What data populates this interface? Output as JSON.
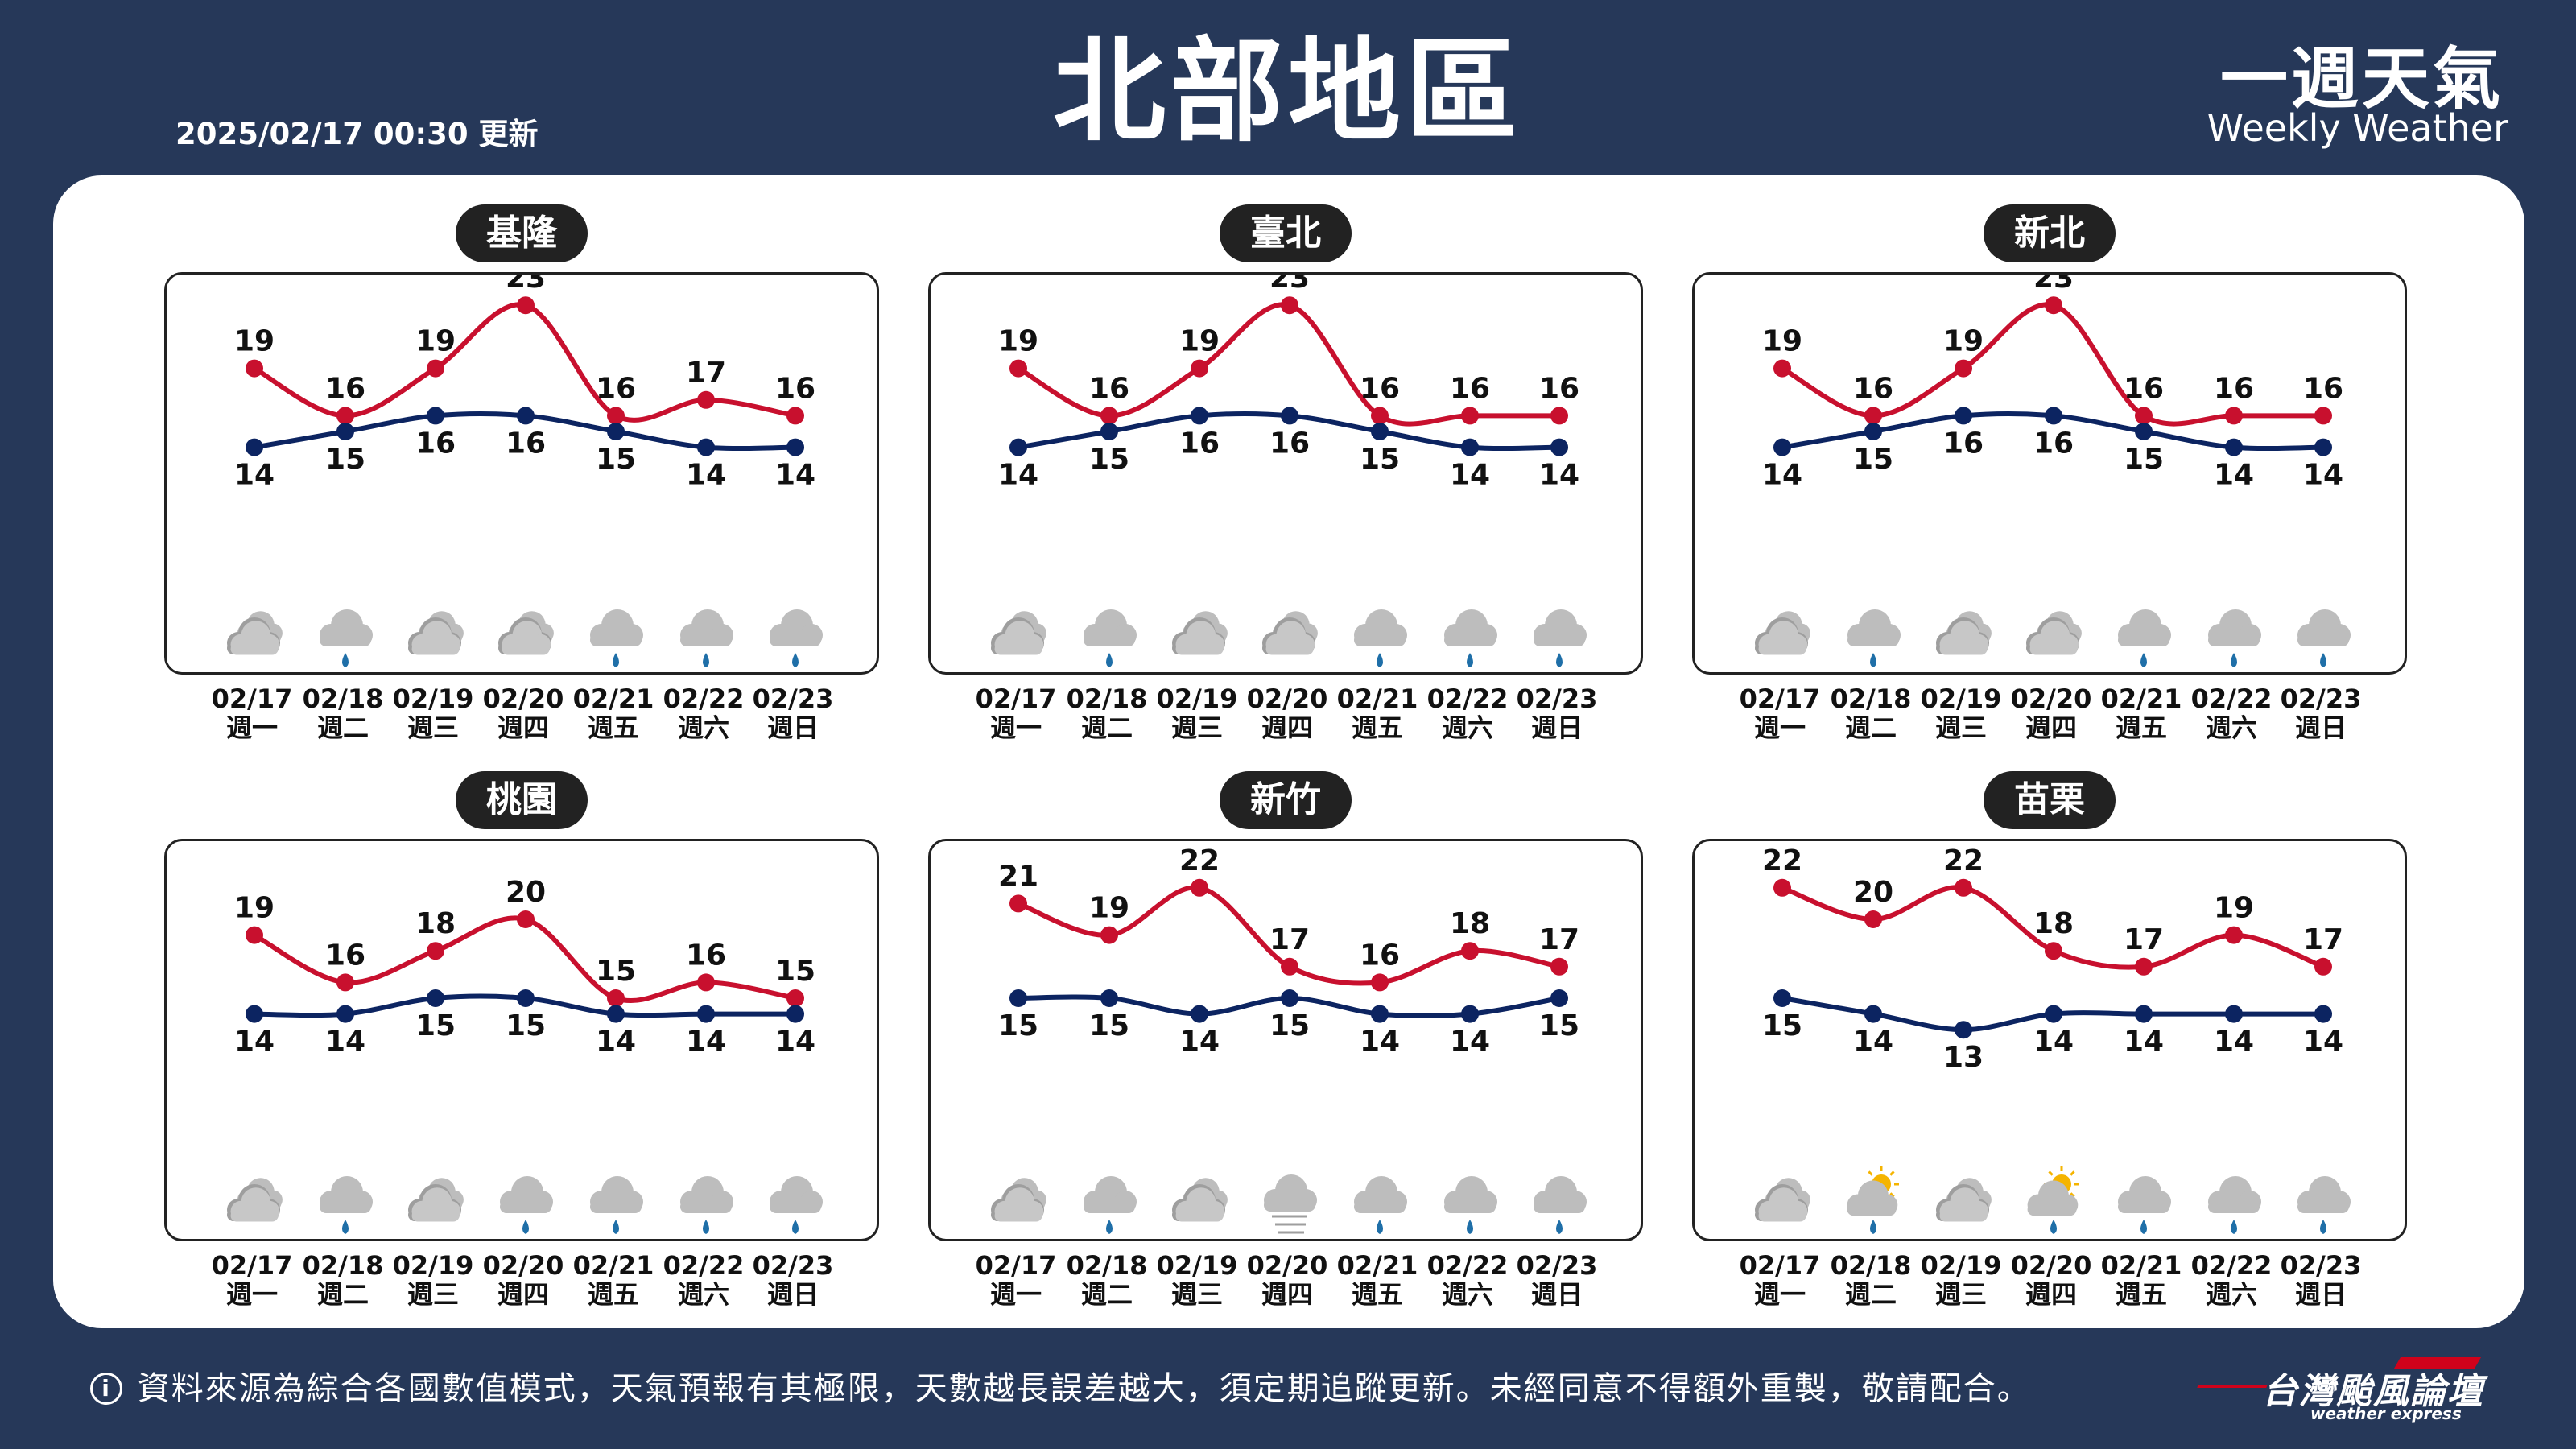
{
  "header": {
    "title": "北部地區",
    "updated": "2025/02/17 00:30 更新",
    "brand_zh": "一週天氣",
    "brand_en": "Weekly Weather"
  },
  "colors": {
    "high": "#c8102e",
    "low": "#0c2461",
    "background": "#263859",
    "rain": "#1f6fa8"
  },
  "days": [
    {
      "date": "02/17",
      "weekday": "週一"
    },
    {
      "date": "02/18",
      "weekday": "週二"
    },
    {
      "date": "02/19",
      "weekday": "週三"
    },
    {
      "date": "02/20",
      "weekday": "週四"
    },
    {
      "date": "02/21",
      "weekday": "週五"
    },
    {
      "date": "02/22",
      "weekday": "週六"
    },
    {
      "date": "02/23",
      "weekday": "週日"
    }
  ],
  "chart_data": [
    {
      "type": "line",
      "title": "基隆",
      "categories": [
        "02/17",
        "02/18",
        "02/19",
        "02/20",
        "02/21",
        "02/22",
        "02/23"
      ],
      "series": [
        {
          "values": [
            19,
            16,
            19,
            23,
            16,
            17,
            16
          ]
        },
        {
          "values": [
            14,
            15,
            16,
            16,
            15,
            14,
            14
          ]
        }
      ],
      "icons": [
        "cloudy-icon",
        "rain-icon",
        "cloudy-icon",
        "cloudy-icon",
        "rain-icon",
        "rain-icon",
        "rain-icon"
      ]
    },
    {
      "type": "line",
      "title": "臺北",
      "categories": [
        "02/17",
        "02/18",
        "02/19",
        "02/20",
        "02/21",
        "02/22",
        "02/23"
      ],
      "series": [
        {
          "values": [
            19,
            16,
            19,
            23,
            16,
            16,
            16
          ]
        },
        {
          "values": [
            14,
            15,
            16,
            16,
            15,
            14,
            14
          ]
        }
      ],
      "icons": [
        "cloudy-icon",
        "rain-icon",
        "cloudy-icon",
        "cloudy-icon",
        "rain-icon",
        "rain-icon",
        "rain-icon"
      ]
    },
    {
      "type": "line",
      "title": "新北",
      "categories": [
        "02/17",
        "02/18",
        "02/19",
        "02/20",
        "02/21",
        "02/22",
        "02/23"
      ],
      "series": [
        {
          "values": [
            19,
            16,
            19,
            23,
            16,
            16,
            16
          ]
        },
        {
          "values": [
            14,
            15,
            16,
            16,
            15,
            14,
            14
          ]
        }
      ],
      "icons": [
        "cloudy-icon",
        "rain-icon",
        "cloudy-icon",
        "cloudy-icon",
        "rain-icon",
        "rain-icon",
        "rain-icon"
      ]
    },
    {
      "type": "line",
      "title": "桃園",
      "categories": [
        "02/17",
        "02/18",
        "02/19",
        "02/20",
        "02/21",
        "02/22",
        "02/23"
      ],
      "series": [
        {
          "values": [
            19,
            16,
            18,
            20,
            15,
            16,
            15
          ]
        },
        {
          "values": [
            14,
            14,
            15,
            15,
            14,
            14,
            14
          ]
        }
      ],
      "icons": [
        "cloudy-icon",
        "rain-icon",
        "cloudy-icon",
        "rain-icon",
        "rain-icon",
        "rain-icon",
        "rain-icon"
      ]
    },
    {
      "type": "line",
      "title": "新竹",
      "categories": [
        "02/17",
        "02/18",
        "02/19",
        "02/20",
        "02/21",
        "02/22",
        "02/23"
      ],
      "series": [
        {
          "values": [
            21,
            19,
            22,
            17,
            16,
            18,
            17
          ]
        },
        {
          "values": [
            15,
            15,
            14,
            15,
            14,
            14,
            15
          ]
        }
      ],
      "icons": [
        "cloudy-icon",
        "rain-icon",
        "cloudy-icon",
        "fog-icon",
        "rain-icon",
        "rain-icon",
        "rain-icon"
      ]
    },
    {
      "type": "line",
      "title": "苗栗",
      "categories": [
        "02/17",
        "02/18",
        "02/19",
        "02/20",
        "02/21",
        "02/22",
        "02/23"
      ],
      "series": [
        {
          "values": [
            22,
            20,
            22,
            18,
            17,
            19,
            17
          ]
        },
        {
          "values": [
            15,
            14,
            13,
            14,
            14,
            14,
            14
          ]
        }
      ],
      "icons": [
        "cloudy-icon",
        "sun-rain-icon",
        "cloudy-icon",
        "sun-rain-icon",
        "rain-icon",
        "rain-icon",
        "rain-icon"
      ]
    }
  ],
  "footer": {
    "info_glyph": "i",
    "disclaimer": "資料來源為綜合各國數值模式，天氣預報有其極限，天數越長誤差越大，須定期追蹤更新。未經同意不得額外重製，敬請配合。",
    "logo_text": "台灣颱風論壇",
    "logo_sub": "weather express"
  }
}
